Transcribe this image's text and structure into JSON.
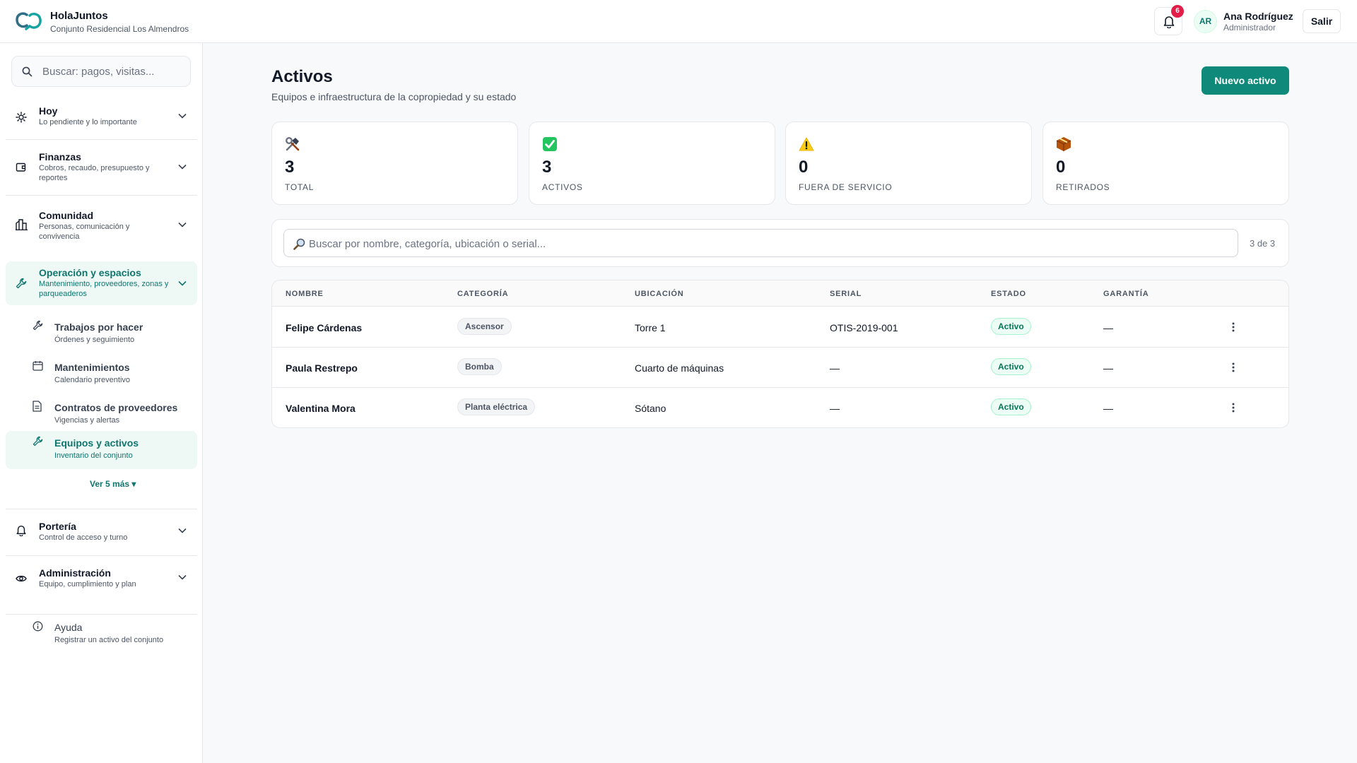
{
  "header": {
    "brand_name": "HolaJuntos",
    "brand_sub": "Conjunto Residencial Los Almendros",
    "notifications_count": "6",
    "user_initials": "AR",
    "user_name": "Ana Rodríguez",
    "user_role": "Administrador",
    "logout_label": "Salir"
  },
  "sidebar": {
    "search_placeholder": "Buscar: pagos, visitas...",
    "sections": [
      {
        "title": "Hoy",
        "subtitle": "Lo pendiente y lo importante",
        "icon": "sun-icon"
      },
      {
        "title": "Finanzas",
        "subtitle": "Cobros, recaudo, presupuesto y reportes",
        "icon": "wallet-icon"
      },
      {
        "title": "Comunidad",
        "subtitle": "Personas, comunicación y convivencia",
        "icon": "building-icon"
      },
      {
        "title": "Operación y espacios",
        "subtitle": "Mantenimiento, proveedores, zonas y parqueaderos",
        "icon": "wrench-icon"
      },
      {
        "title": "Portería",
        "subtitle": "Control de acceso y turno",
        "icon": "bell-icon"
      },
      {
        "title": "Administración",
        "subtitle": "Equipo, cumplimiento y plan",
        "icon": "eye-icon"
      }
    ],
    "sub_items": [
      {
        "title": "Trabajos por hacer",
        "subtitle": "Órdenes y seguimiento",
        "icon": "wrench-icon"
      },
      {
        "title": "Mantenimientos",
        "subtitle": "Calendario preventivo",
        "icon": "calendar-icon"
      },
      {
        "title": "Contratos de proveedores",
        "subtitle": "Vigencias y alertas",
        "icon": "document-icon"
      },
      {
        "title": "Equipos y activos",
        "subtitle": "Inventario del conjunto",
        "icon": "wrench-icon"
      }
    ],
    "more_label": "Ver 5 más ▾",
    "help_title": "Ayuda",
    "help_subtitle": "Registrar un activo del conjunto"
  },
  "main": {
    "title": "Activos",
    "subtitle": "Equipos e infraestructura de la copropiedad y su estado",
    "new_button": "Nuevo activo",
    "stats": [
      {
        "icon": "tools-icon",
        "value": "3",
        "label": "TOTAL"
      },
      {
        "icon": "check-icon",
        "value": "3",
        "label": "ACTIVOS"
      },
      {
        "icon": "warning-icon",
        "value": "0",
        "label": "FUERA DE SERVICIO"
      },
      {
        "icon": "box-icon",
        "value": "0",
        "label": "RETIRADOS"
      }
    ],
    "filter_placeholder": "Buscar por nombre, categoría, ubicación o serial...",
    "count": "3 de 3",
    "table": {
      "columns": [
        "NOMBRE",
        "CATEGORÍA",
        "UBICACIÓN",
        "SERIAL",
        "ESTADO",
        "GARANTÍA"
      ],
      "rows": [
        {
          "name": "Felipe Cárdenas",
          "category": "Ascensor",
          "location": "Torre 1",
          "serial": "OTIS-2019-001",
          "status": "Activo",
          "warranty": "—"
        },
        {
          "name": "Paula Restrepo",
          "category": "Bomba",
          "location": "Cuarto de máquinas",
          "serial": "—",
          "status": "Activo",
          "warranty": "—"
        },
        {
          "name": "Valentina Mora",
          "category": "Planta eléctrica",
          "location": "Sótano",
          "serial": "—",
          "status": "Activo",
          "warranty": "—"
        }
      ]
    }
  },
  "colors": {
    "accent": "#0f8a7a",
    "accent_text": "#0f766e",
    "badge": "#e11d48"
  }
}
